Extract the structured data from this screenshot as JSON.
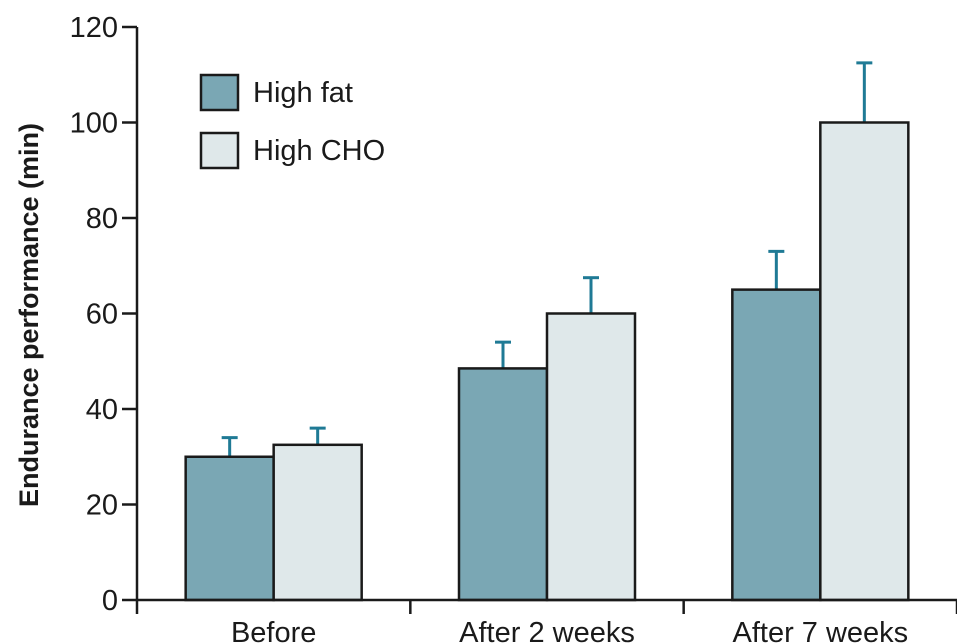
{
  "chart_data": {
    "type": "bar",
    "title": "",
    "xlabel": "",
    "ylabel": "Endurance performance (min)",
    "ylim": [
      0,
      120
    ],
    "yticks": [
      0,
      20,
      40,
      60,
      80,
      100,
      120
    ],
    "categories": [
      "Before",
      "After 2 weeks",
      "After 7 weeks"
    ],
    "series": [
      {
        "name": "High fat",
        "values": [
          30,
          48.5,
          65
        ],
        "error": [
          4,
          5.5,
          8
        ],
        "color": "#7aa7b4"
      },
      {
        "name": "High CHO",
        "values": [
          32.5,
          60,
          100
        ],
        "error": [
          3.5,
          7.5,
          12.5
        ],
        "color": "#dfe8ea"
      }
    ],
    "error_bar_color": "#1f7a95",
    "legend_position": "top-left",
    "grid": false
  }
}
